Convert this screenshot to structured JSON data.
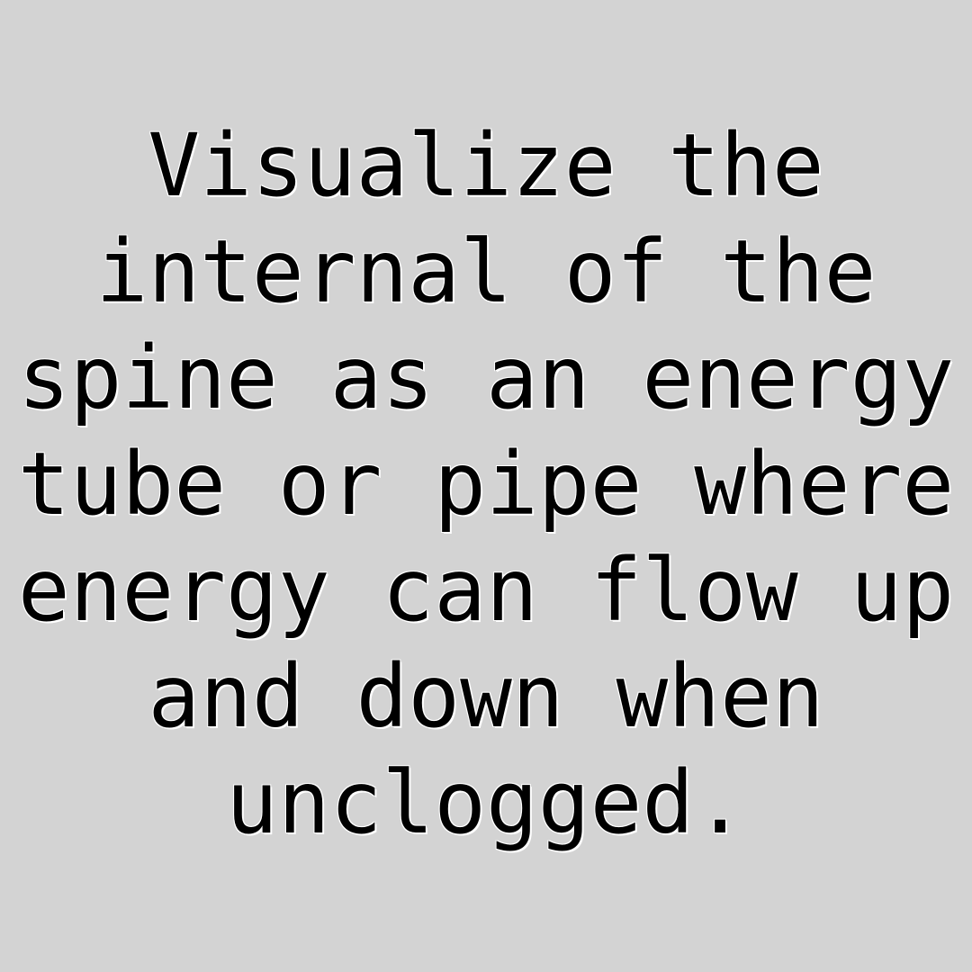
{
  "quote": {
    "lines": [
      "Visualize the",
      "internal of the",
      "spine as an energy",
      "tube or pipe where",
      "energy can flow up",
      "and down when",
      "unclogged."
    ]
  }
}
